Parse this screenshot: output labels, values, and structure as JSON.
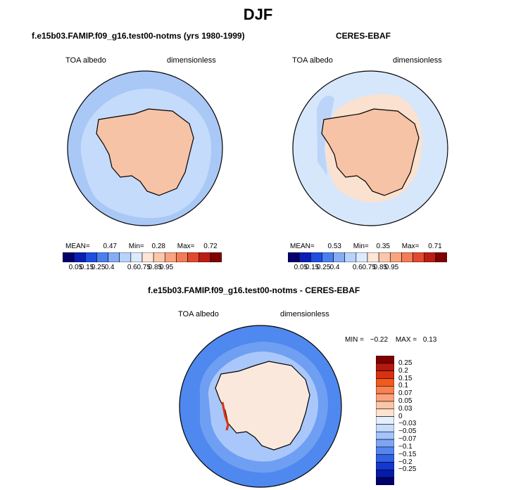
{
  "page_title": "DJF",
  "panels": [
    {
      "title": "f.e15b03.FAMIP.f09_g16.test00-notms (yrs 1980-1999)",
      "left_label": "TOA albedo",
      "right_label": "dimensionless",
      "stats": {
        "mean_label": "MEAN=",
        "mean": "0.47",
        "min_label": "Min=",
        "min": "0.28",
        "max_label": "Max=",
        "max": "0.72"
      }
    },
    {
      "title": "CERES-EBAF",
      "left_label": "TOA albedo",
      "right_label": "dimensionless",
      "stats": {
        "mean_label": "MEAN=",
        "mean": "0.53",
        "min_label": "Min=",
        "min": "0.35",
        "max_label": "Max=",
        "max": "0.71"
      }
    },
    {
      "title": "f.e15b03.FAMIP.f09_g16.test00-notms - CERES-EBAF",
      "left_label": "TOA albedo",
      "right_label": "dimensionless",
      "stats": {
        "min_label": "MIN =",
        "min": "−0.22",
        "max_label": "MAX =",
        "max": "0.13"
      }
    }
  ],
  "horizontal_colorbar": {
    "colors": [
      "#08006b",
      "#0b1fb4",
      "#1f4fe0",
      "#4a7ff0",
      "#86acf5",
      "#b8d3fb",
      "#dceafd",
      "#fde6d6",
      "#fbc7aa",
      "#f8a47f",
      "#f37c58",
      "#e24a2f",
      "#bb1d14",
      "#7f0000"
    ],
    "labels": [
      "0.05",
      "0.15",
      "0.25",
      "0.4",
      "0.6",
      "0.75",
      "0.85",
      "0.95"
    ]
  },
  "vertical_colorbar": {
    "colors": [
      "#800000",
      "#b2190f",
      "#d9320f",
      "#f25a1e",
      "#fa8150",
      "#fba37f",
      "#fcc5a5",
      "#fde3cf",
      "#e6efff",
      "#c7dcfd",
      "#a3c3fb",
      "#7da5f6",
      "#5586f0",
      "#2f62e6",
      "#1536cf",
      "#041ca7",
      "#00006b"
    ],
    "labels": [
      "0.25",
      "0.2",
      "0.15",
      "0.1",
      "0.07",
      "0.05",
      "0.03",
      "0",
      "−0.03",
      "−0.05",
      "−0.07",
      "−0.1",
      "−0.15",
      "−0.2",
      "−0.25"
    ]
  },
  "colors": {
    "ocean_model": "#a9c8f6",
    "ice_model": "#f6c3a6",
    "ocean_obs": "#d6e7fb",
    "ice_obs": "#f6c3a6",
    "diff_ocean": "#4f88ee",
    "diff_ice": "#fbe8dc"
  }
}
